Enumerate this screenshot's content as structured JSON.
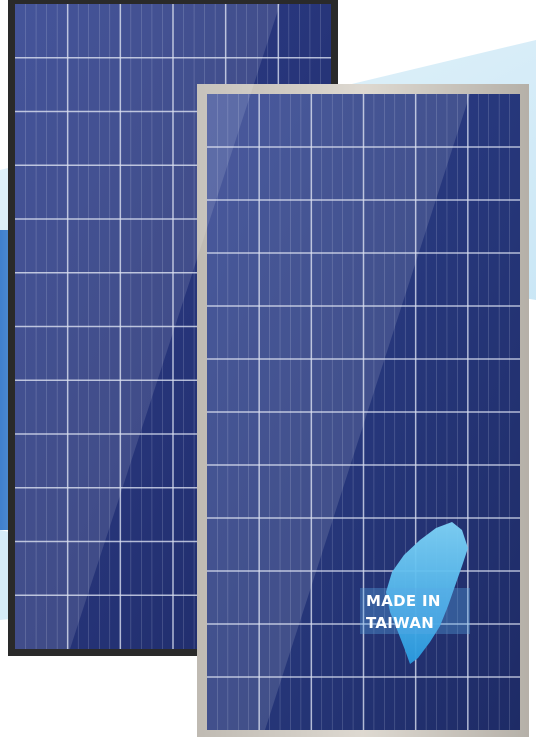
{
  "badge": {
    "line1": "MADE IN",
    "line2": "TAIWAN"
  }
}
